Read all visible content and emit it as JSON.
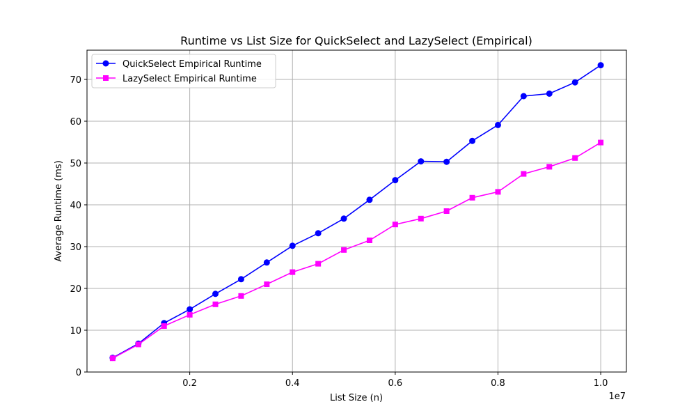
{
  "chart_data": {
    "type": "line",
    "title": "Runtime vs List Size for QuickSelect and LazySelect (Empirical)",
    "xlabel": "List Size (n)",
    "ylabel": "Average Runtime (ms)",
    "x_offset_label": "1e7",
    "xlim": [
      0,
      10500000
    ],
    "ylim": [
      0,
      77
    ],
    "x_ticks": [
      2000000,
      4000000,
      6000000,
      8000000,
      10000000
    ],
    "x_tick_labels": [
      "0.2",
      "0.4",
      "0.6",
      "0.8",
      "1.0"
    ],
    "y_ticks": [
      0,
      10,
      20,
      30,
      40,
      50,
      60,
      70
    ],
    "y_tick_labels": [
      "0",
      "10",
      "20",
      "30",
      "40",
      "50",
      "60",
      "70"
    ],
    "grid": true,
    "legend_position": "top-left",
    "x": [
      500000,
      1000000,
      1500000,
      2000000,
      2500000,
      3000000,
      3500000,
      4000000,
      4500000,
      5000000,
      5500000,
      6000000,
      6500000,
      7000000,
      7500000,
      8000000,
      8500000,
      9000000,
      9500000,
      10000000
    ],
    "series": [
      {
        "name": "QuickSelect Empirical Runtime",
        "color": "#0000ff",
        "marker": "circle",
        "values": [
          3.4,
          6.8,
          11.7,
          15.0,
          18.7,
          22.2,
          26.2,
          30.2,
          33.2,
          36.7,
          41.2,
          45.9,
          50.4,
          50.3,
          55.3,
          59.1,
          66.0,
          66.6,
          69.3,
          73.4
        ]
      },
      {
        "name": "LazySelect Empirical Runtime",
        "color": "#ff00ff",
        "marker": "square",
        "values": [
          3.3,
          6.6,
          11.0,
          13.7,
          16.2,
          18.2,
          21.0,
          23.9,
          25.9,
          29.2,
          31.5,
          35.3,
          36.7,
          38.5,
          41.7,
          43.1,
          47.4,
          49.1,
          51.2,
          54.9
        ]
      }
    ]
  }
}
